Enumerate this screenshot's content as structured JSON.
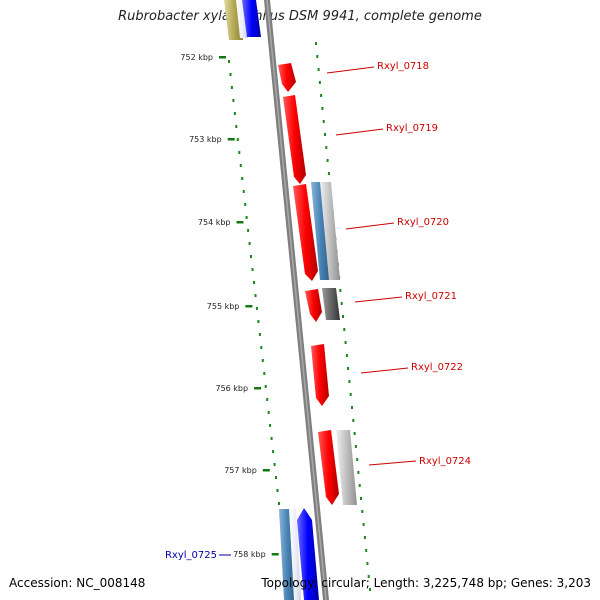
{
  "title": "Rubrobacter xylanophilus DSM 9941, complete genome",
  "footer": {
    "accession": "Accession: NC_008148",
    "summary": "Topology: circular; Length: 3,225,748 bp; Genes: 3,203"
  },
  "ticks": [
    "752 kbp",
    "753 kbp",
    "754 kbp",
    "755 kbp",
    "756 kbp",
    "757 kbp",
    "758 kbp"
  ],
  "gene_labels": [
    {
      "text": "Rxyl_0718",
      "color": "#cc0000"
    },
    {
      "text": "Rxyl_0719",
      "color": "#cc0000"
    },
    {
      "text": "Rxyl_0720",
      "color": "#cc0000"
    },
    {
      "text": "Rxyl_0721",
      "color": "#cc0000"
    },
    {
      "text": "Rxyl_0722",
      "color": "#cc0000"
    },
    {
      "text": "Rxyl_0724",
      "color": "#cc0000"
    },
    {
      "text": "Rxyl_0725",
      "color": "#0000aa"
    }
  ],
  "colors": {
    "backbone": "#808080",
    "forward_gene": "#ff0000",
    "reverse_gene": "#0000ff",
    "steel_gene": "#4682b4",
    "pseudo_gene": "#b0b0b0",
    "dark_gene": "#555555",
    "olive_gene": "#b5aa55",
    "gc_dots": "#1a8a1a"
  }
}
